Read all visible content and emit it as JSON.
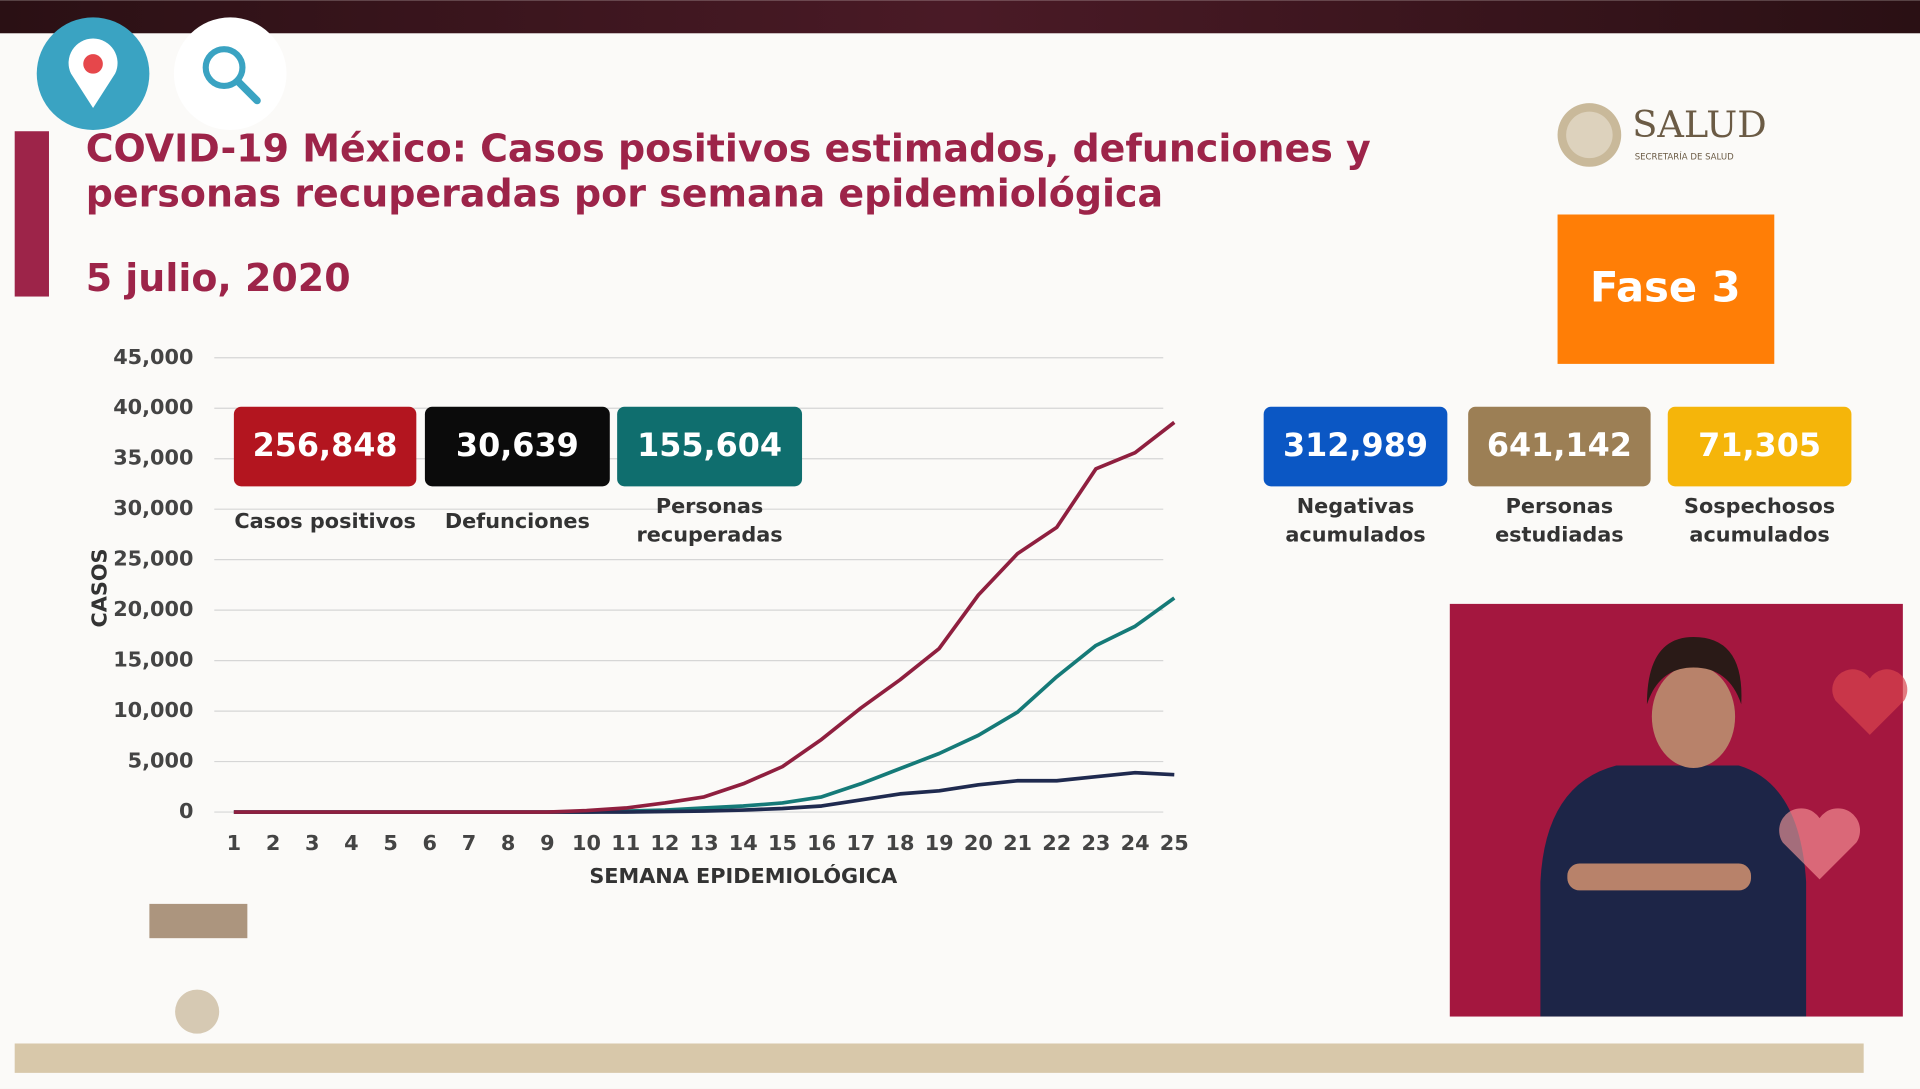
{
  "chart_data": {
    "type": "line",
    "title": [
      "COVID-19 México: Casos positivos estimados, defunciones y",
      "personas recuperadas por semana epidemiológica"
    ],
    "subtitle": "5 julio, 2020",
    "x_label": "SEMANA EPIDEMIOLÓGICA",
    "y_label": "CASOS",
    "x": [
      1,
      2,
      3,
      4,
      5,
      6,
      7,
      8,
      9,
      10,
      11,
      12,
      13,
      14,
      15,
      16,
      17,
      18,
      19,
      20,
      21,
      22,
      23,
      24,
      25
    ],
    "xlim": [
      1,
      25
    ],
    "ylim": [
      0,
      45000
    ],
    "yticks": [
      0,
      {
        "value": 5000,
        "label": "5,000"
      },
      {
        "value": 10000,
        "label": "10,000"
      },
      {
        "value": 15000,
        "label": "15,000"
      },
      {
        "value": 20000,
        "label": "20,000"
      },
      {
        "value": 25000,
        "label": "25,000"
      },
      {
        "value": 30000,
        "label": "30,000"
      },
      {
        "value": 35000,
        "label": "35,000"
      },
      {
        "value": 40000,
        "label": "40,000"
      },
      {
        "value": 45000,
        "label": "45,000"
      }
    ],
    "grid": true,
    "series": [
      {
        "color": "#157a78",
        "values": [
          0,
          0,
          0,
          0,
          0,
          0,
          0,
          0,
          0,
          0,
          100,
          200,
          400,
          600,
          900,
          1500,
          2800,
          4300,
          5800,
          7600,
          9900,
          13400,
          16500,
          18400,
          21200
        ]
      },
      {
        "color": "#1f2a4f",
        "values": [
          0,
          0,
          0,
          0,
          0,
          0,
          0,
          0,
          0,
          0,
          0,
          50,
          100,
          200,
          350,
          600,
          1200,
          1800,
          2100,
          2700,
          3100,
          3100,
          3500,
          3900,
          3700
        ]
      },
      {
        "color": "#8f1f3f",
        "values": [
          0,
          0,
          0,
          0,
          0,
          0,
          0,
          0,
          0,
          150,
          400,
          900,
          1500,
          2800,
          4500,
          7200,
          10300,
          13100,
          16200,
          21500,
          25600,
          28200,
          34000,
          35600,
          38600
        ]
      }
    ]
  },
  "stats": [
    {
      "value": "256,848",
      "label": [
        "Casos positivos"
      ],
      "color": "#b3151f"
    },
    {
      "value": "30,639",
      "label": [
        "Defunciones"
      ],
      "color": "#0b0b0b"
    },
    {
      "value": "155,604",
      "label": [
        "Personas",
        "recuperadas"
      ],
      "color": "#0f6e6e"
    },
    {
      "value": "312,989",
      "label": [
        "Negativas",
        "acumulados"
      ],
      "color": "#0b57c4"
    },
    {
      "value": "641,142",
      "label": [
        "Personas",
        "estudiadas"
      ],
      "color": "#9c7f55"
    },
    {
      "value": "71,305",
      "label": [
        "Sospechosos",
        "acumulados"
      ],
      "color": "#f5b50a"
    }
  ],
  "phase": "Fase 3",
  "logo": {
    "name": "SALUD",
    "sub": "SECRETARÍA DE SALUD"
  }
}
